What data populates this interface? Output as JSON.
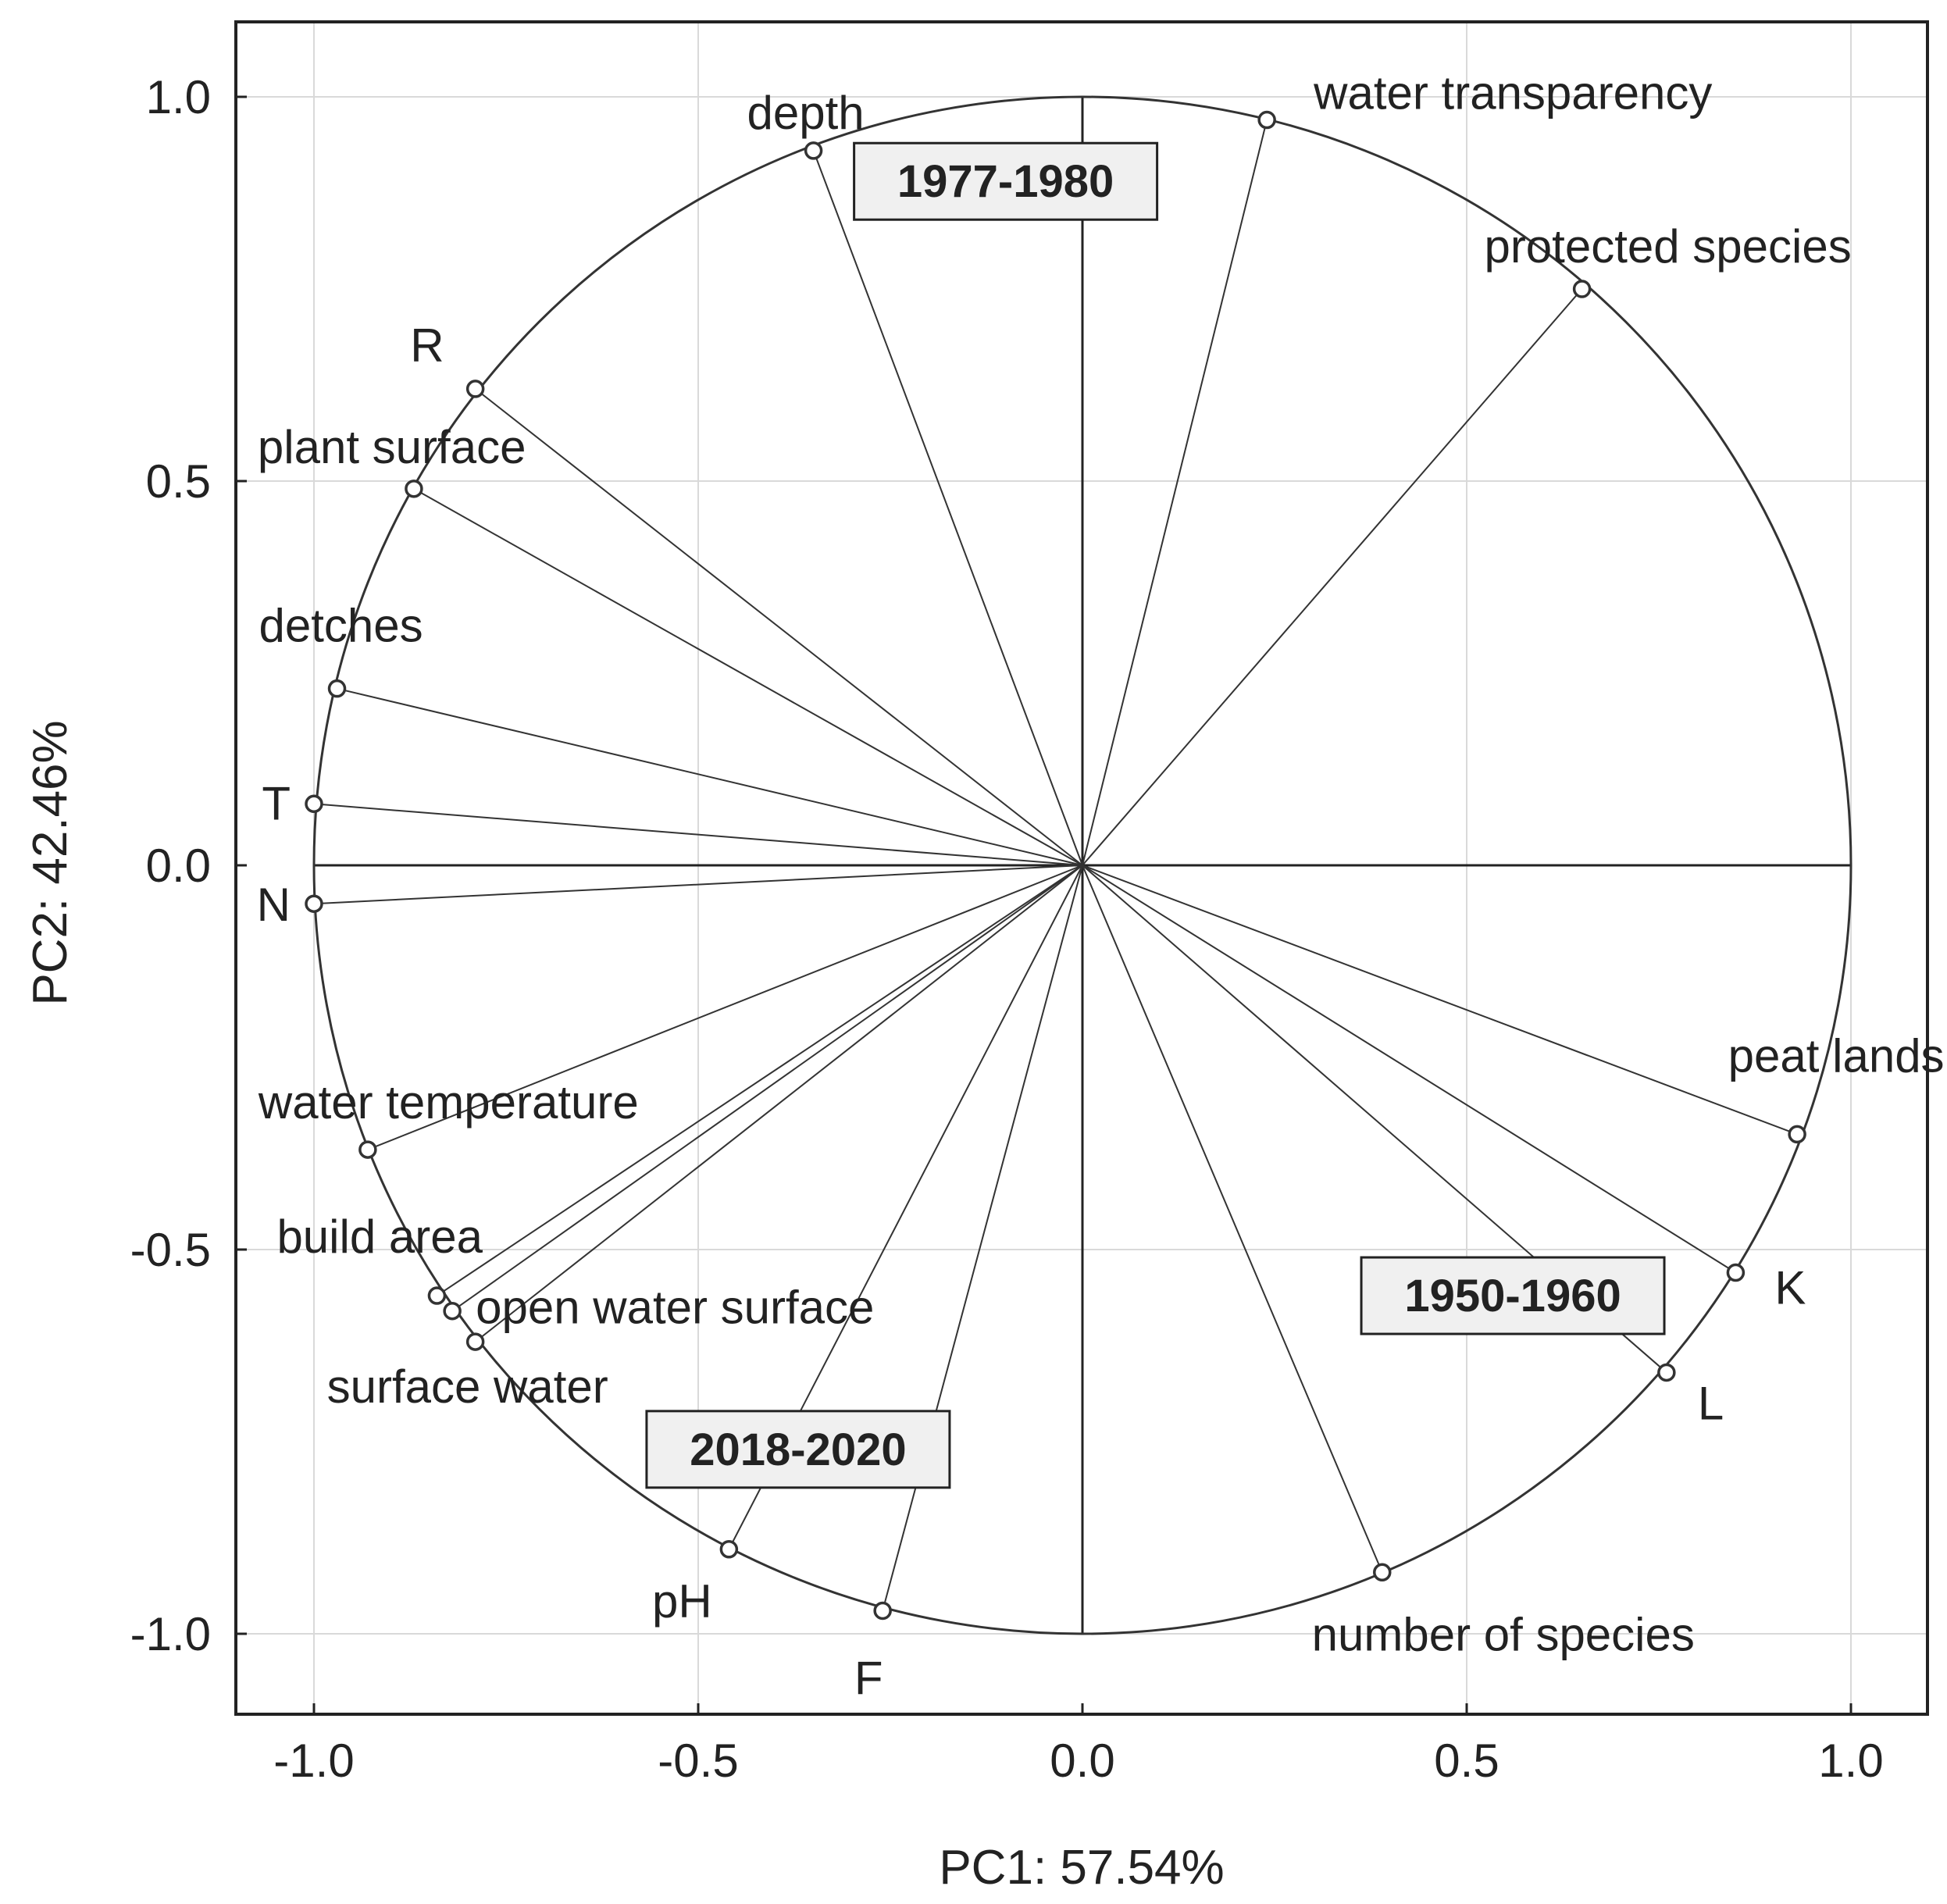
{
  "chart_data": {
    "type": "scatter",
    "subtype": "pca-correlation-circle",
    "title": "",
    "xlabel": "PC1: 57.54%",
    "ylabel": "PC2: 42.46%",
    "xlim": [
      -1.1,
      1.1
    ],
    "ylim": [
      -1.1,
      1.1
    ],
    "xticks": [
      -1.0,
      -0.5,
      0.0,
      0.5,
      1.0
    ],
    "yticks": [
      -1.0,
      -0.5,
      0.0,
      0.5,
      1.0
    ],
    "xtick_labels": [
      "-1.0",
      "-0.5",
      "0.0",
      "0.5",
      "1.0"
    ],
    "ytick_labels": [
      "-1.0",
      "-0.5",
      "0.0",
      "0.5",
      "1.0"
    ],
    "grid": true,
    "unit_circle": true,
    "variables": [
      {
        "name": "depth",
        "label": "depth",
        "pc1": -0.35,
        "pc2": 0.93
      },
      {
        "name": "water-transparency",
        "label": "water transparency",
        "pc1": 0.24,
        "pc2": 0.97
      },
      {
        "name": "protected-species",
        "label": "protected species",
        "pc1": 0.65,
        "pc2": 0.75
      },
      {
        "name": "r",
        "label": "R",
        "pc1": -0.79,
        "pc2": 0.62
      },
      {
        "name": "plant-surface",
        "label": "plant surface",
        "pc1": -0.87,
        "pc2": 0.49
      },
      {
        "name": "detches",
        "label": "detches",
        "pc1": -0.97,
        "pc2": 0.23
      },
      {
        "name": "t",
        "label": "T",
        "pc1": -1.0,
        "pc2": 0.08
      },
      {
        "name": "n",
        "label": "N",
        "pc1": -1.0,
        "pc2": -0.05
      },
      {
        "name": "water-temperature",
        "label": "water temperature",
        "pc1": -0.93,
        "pc2": -0.37
      },
      {
        "name": "build-area",
        "label": "build area",
        "pc1": -0.84,
        "pc2": -0.56
      },
      {
        "name": "open-water-surface",
        "label": "open water surface",
        "pc1": -0.82,
        "pc2": -0.58
      },
      {
        "name": "surface-water",
        "label": "surface water",
        "pc1": -0.79,
        "pc2": -0.62
      },
      {
        "name": "ph",
        "label": "pH",
        "pc1": -0.46,
        "pc2": -0.89
      },
      {
        "name": "f",
        "label": "F",
        "pc1": -0.26,
        "pc2": -0.97
      },
      {
        "name": "number-of-species",
        "label": "number of species",
        "pc1": 0.39,
        "pc2": -0.92
      },
      {
        "name": "peat-lands",
        "label": "peat lands",
        "pc1": 0.93,
        "pc2": -0.35
      },
      {
        "name": "k",
        "label": "K",
        "pc1": 0.85,
        "pc2": -0.53
      },
      {
        "name": "l",
        "label": "L",
        "pc1": 0.76,
        "pc2": -0.66
      }
    ],
    "annotations": [
      {
        "name": "period-1977-1980",
        "text": "1977-1980",
        "pc1": -0.1,
        "pc2": 0.89
      },
      {
        "name": "period-1950-1960",
        "text": "1950-1960",
        "pc1": 0.56,
        "pc2": -0.56
      },
      {
        "name": "period-2018-2020",
        "text": "2018-2020",
        "pc1": -0.37,
        "pc2": -0.76
      }
    ]
  }
}
